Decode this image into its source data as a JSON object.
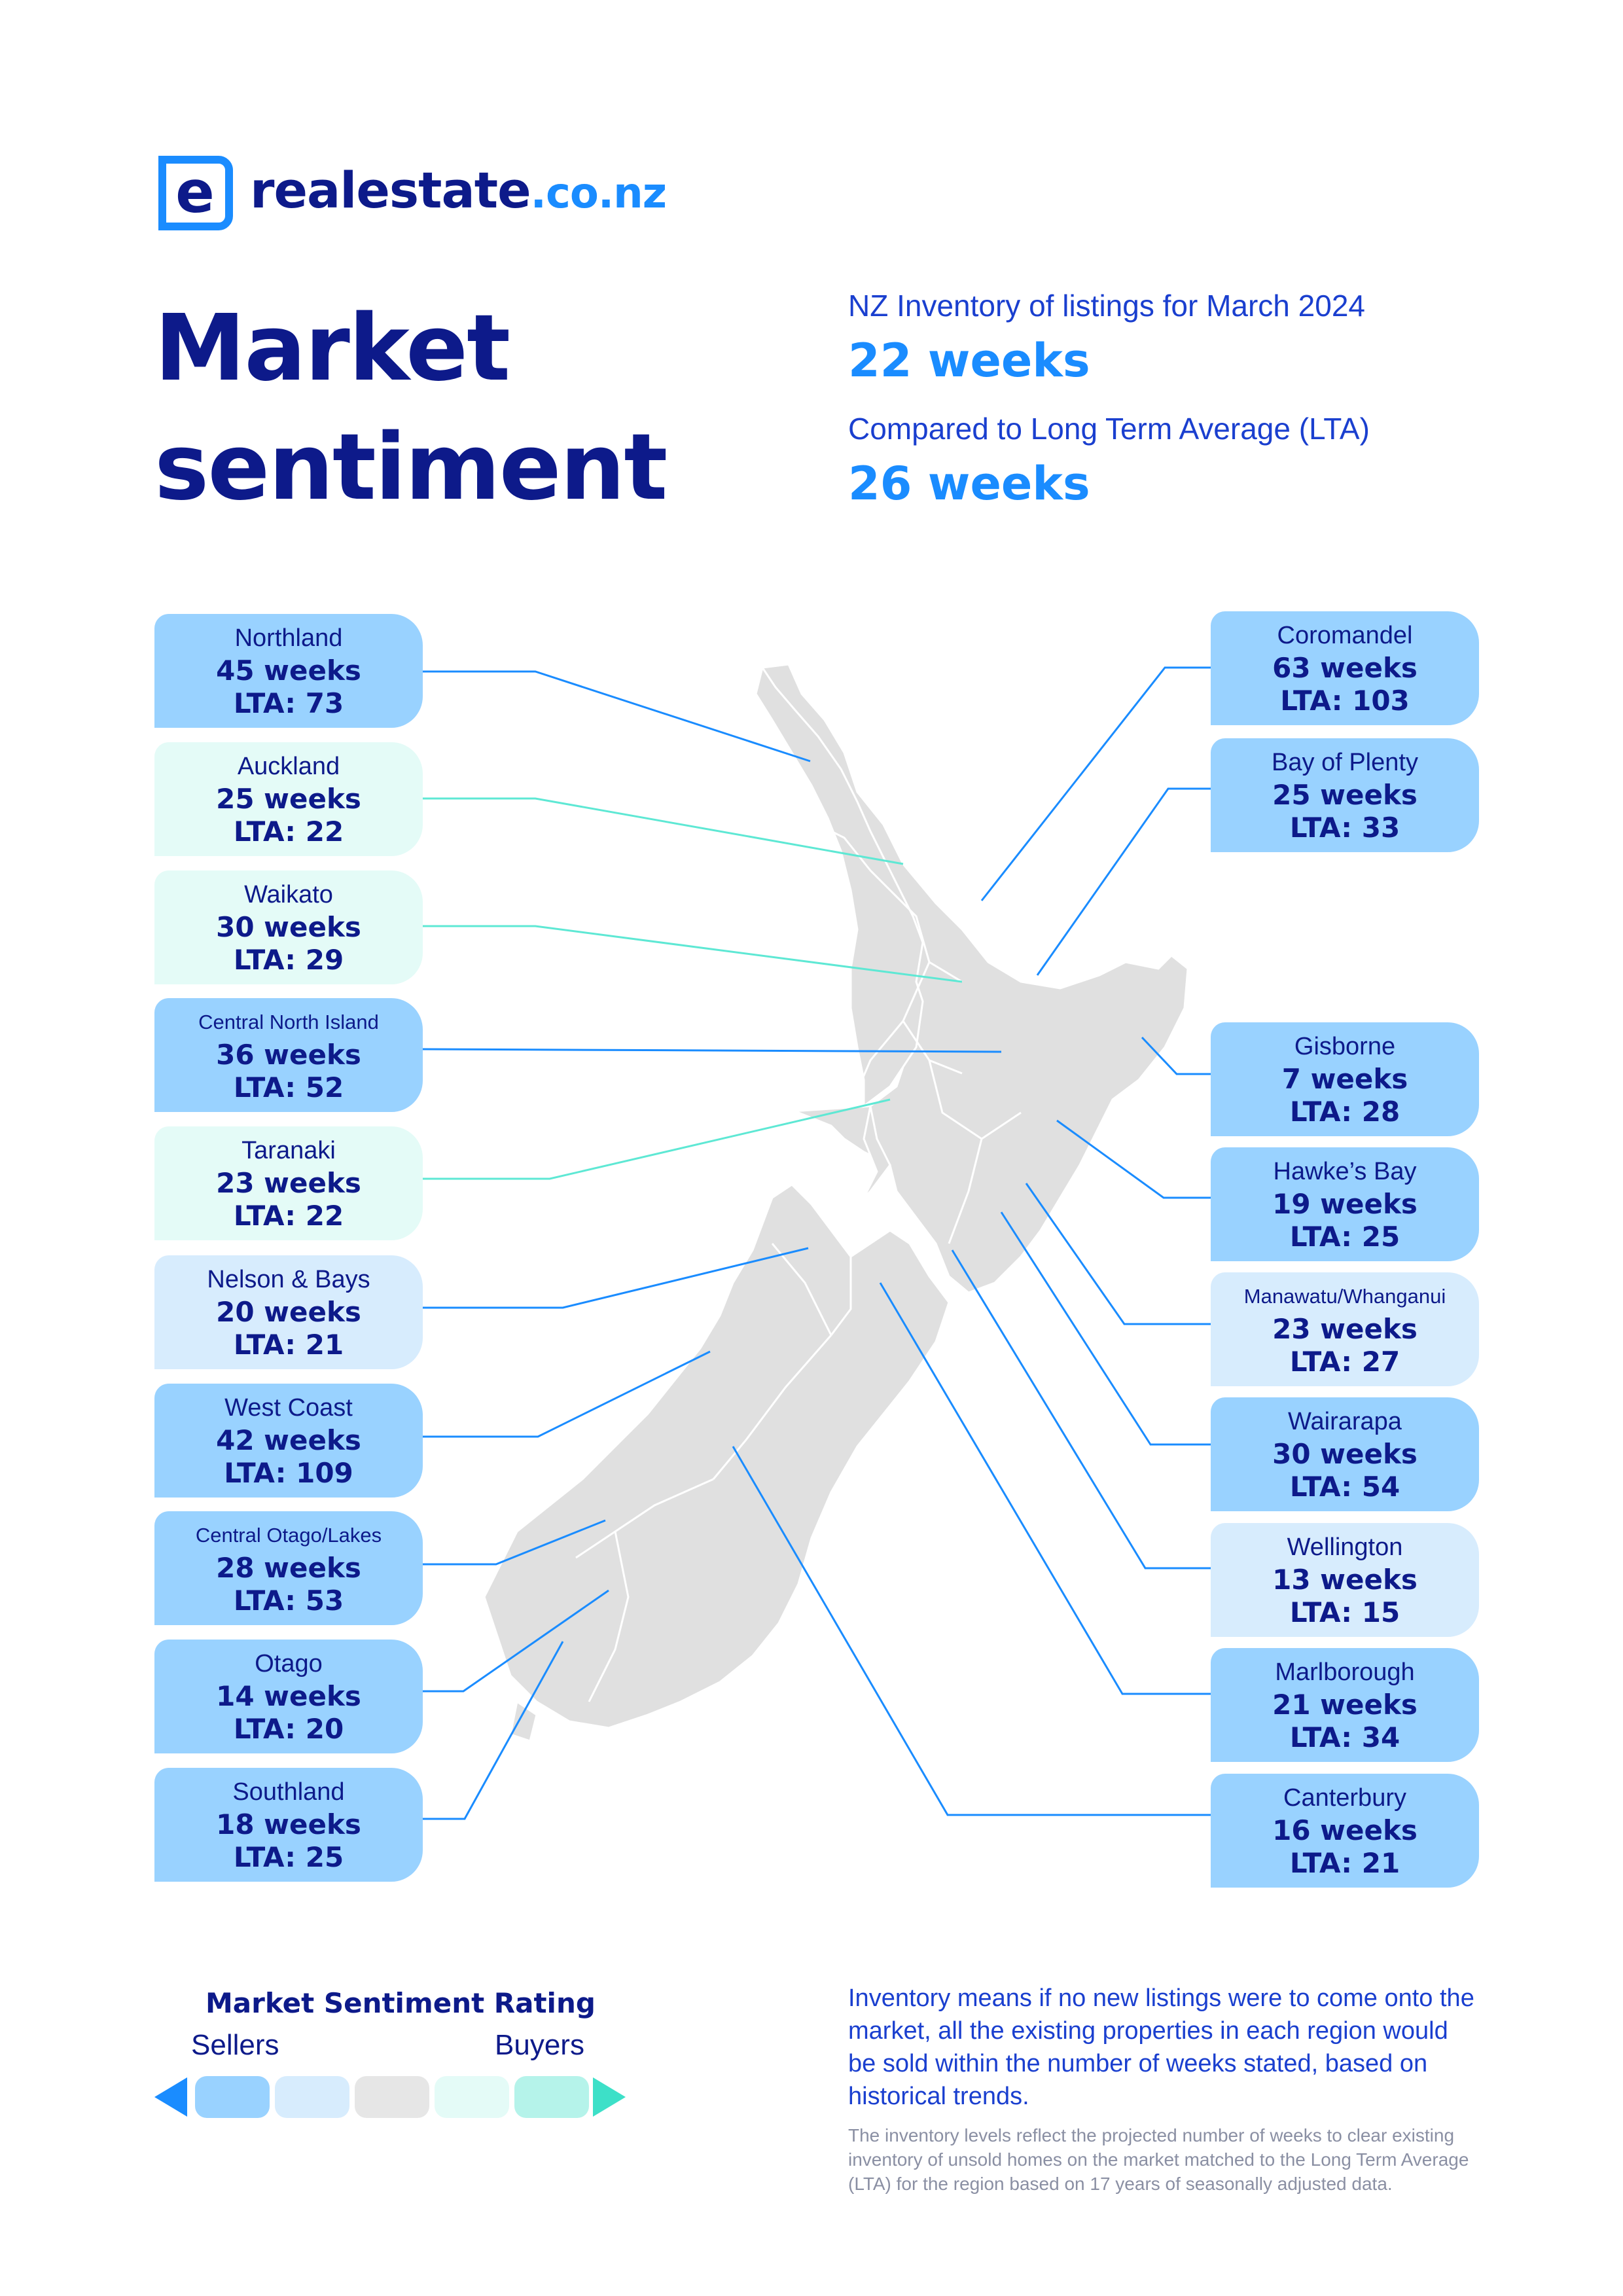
{
  "logo": {
    "icon_letter": "e",
    "name": "realestate",
    "tld": ".co.nz"
  },
  "title": {
    "line1": "Market",
    "line2": "sentiment"
  },
  "summary": {
    "inventory_label": "NZ Inventory of listings for March 2024",
    "inventory_value": "22 weeks",
    "lta_label": "Compared to Long Term Average (LTA)",
    "lta_value": "26 weeks"
  },
  "regions_left": [
    {
      "name": "Northland",
      "weeks": "45 weeks",
      "lta": "LTA: 73",
      "rating": "sellers"
    },
    {
      "name": "Auckland",
      "weeks": "25 weeks",
      "lta": "LTA: 22",
      "rating": "buyers"
    },
    {
      "name": "Waikato",
      "weeks": "30 weeks",
      "lta": "LTA: 29",
      "rating": "buyers"
    },
    {
      "name": "Central North Island",
      "weeks": "36 weeks",
      "lta": "LTA: 52",
      "rating": "sellers"
    },
    {
      "name": "Taranaki",
      "weeks": "23 weeks",
      "lta": "LTA: 22",
      "rating": "buyers"
    },
    {
      "name": "Nelson & Bays",
      "weeks": "20 weeks",
      "lta": "LTA: 21",
      "rating": "slight-sellers"
    },
    {
      "name": "West Coast",
      "weeks": "42 weeks",
      "lta": "LTA: 109",
      "rating": "sellers"
    },
    {
      "name": "Central Otago/Lakes",
      "weeks": "28 weeks",
      "lta": "LTA: 53",
      "rating": "sellers"
    },
    {
      "name": "Otago",
      "weeks": "14 weeks",
      "lta": "LTA: 20",
      "rating": "sellers"
    },
    {
      "name": "Southland",
      "weeks": "18 weeks",
      "lta": "LTA: 25",
      "rating": "sellers"
    }
  ],
  "regions_right": [
    {
      "name": "Coromandel",
      "weeks": "63 weeks",
      "lta": "LTA: 103",
      "rating": "sellers"
    },
    {
      "name": "Bay of Plenty",
      "weeks": "25 weeks",
      "lta": "LTA: 33",
      "rating": "sellers"
    },
    {
      "name": "Gisborne",
      "weeks": "7 weeks",
      "lta": "LTA: 28",
      "rating": "sellers"
    },
    {
      "name": "Hawke’s Bay",
      "weeks": "19 weeks",
      "lta": "LTA: 25",
      "rating": "sellers"
    },
    {
      "name": "Manawatu/Whanganui",
      "weeks": "23 weeks",
      "lta": "LTA: 27",
      "rating": "slight-sellers"
    },
    {
      "name": "Wairarapa",
      "weeks": "30 weeks",
      "lta": "LTA: 54",
      "rating": "sellers"
    },
    {
      "name": "Wellington",
      "weeks": "13 weeks",
      "lta": "LTA: 15",
      "rating": "slight-sellers"
    },
    {
      "name": "Marlborough",
      "weeks": "21 weeks",
      "lta": "LTA: 34",
      "rating": "sellers"
    },
    {
      "name": "Canterbury",
      "weeks": "16 weeks",
      "lta": "LTA: 21",
      "rating": "sellers"
    }
  ],
  "legend": {
    "title": "Market Sentiment Rating",
    "left_label": "Sellers",
    "right_label": "Buyers",
    "scale_colors": [
      "#99d2ff",
      "#d7ecfd",
      "#e6e6e6",
      "#e4fbf7",
      "#b5f3ea"
    ]
  },
  "notes": {
    "main": "Inventory means if no new listings were to come onto the market, all the existing properties in each region would be sold within the number of weeks stated, based on historical trends.",
    "footnote": "The inventory levels reflect the projected number of weeks to clear existing inventory of unsold homes on the market matched to the Long Term Average (LTA) for the region based on 17 years of seasonally adjusted data."
  },
  "colors": {
    "navy": "#0d1a8a",
    "brand_blue": "#1a8cff",
    "sellers": "#99d2ff",
    "slight_sellers": "#d7ecfd",
    "buyers": "#e4fbf7",
    "line_sellers": "#1a8cff",
    "line_buyers": "#5ee8d4",
    "land": "#e0e0e0"
  }
}
